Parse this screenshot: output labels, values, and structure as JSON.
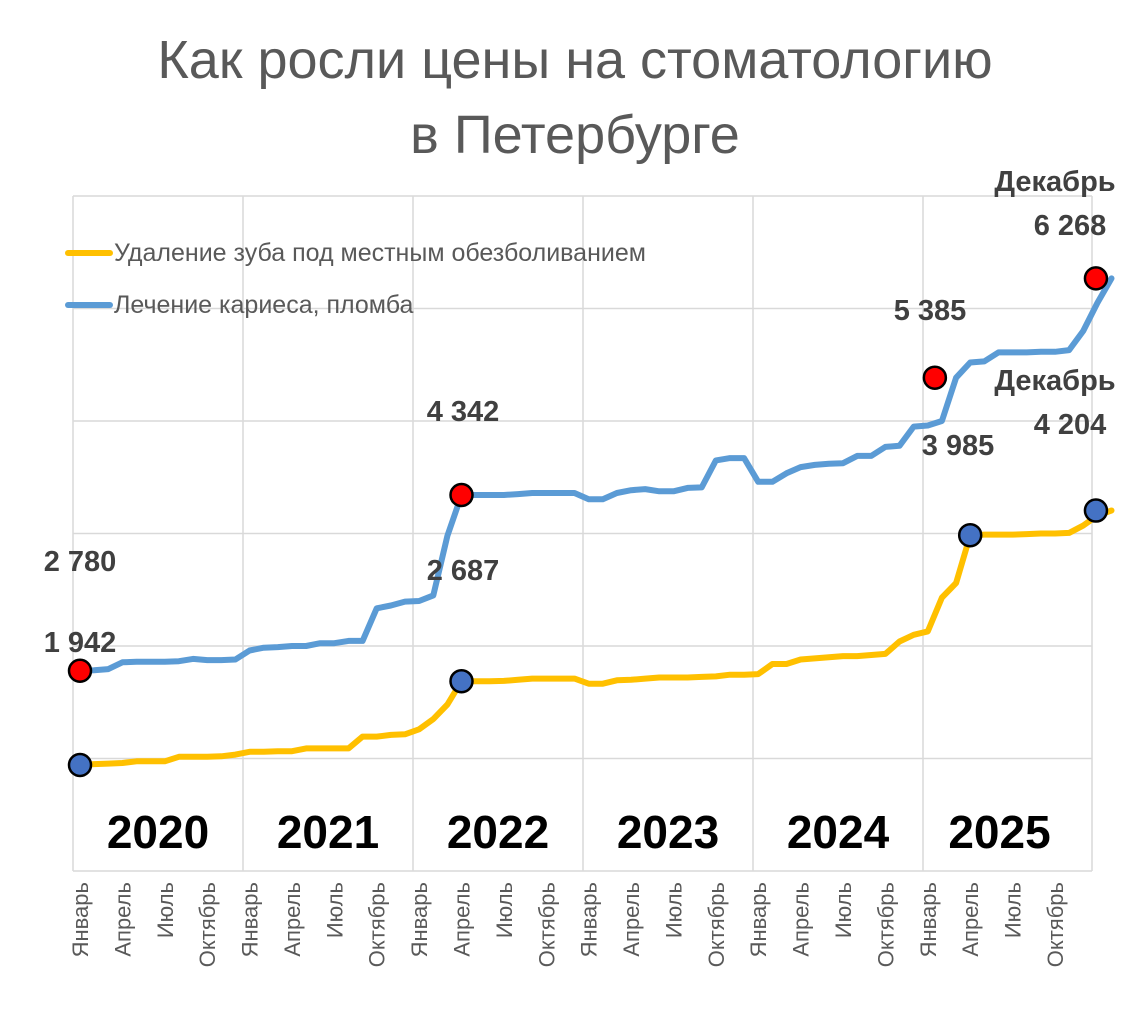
{
  "chart_data": {
    "type": "line",
    "title": [
      "Как росли цены на стоматологию",
      "в Петербурге"
    ],
    "xlabel": "",
    "ylabel": "",
    "ylim": [
      1000,
      7000
    ],
    "grid": true,
    "legend_position": "top-left",
    "x_tick_labels": [
      "Январь",
      "Апрель",
      "Июль",
      "Октябрь",
      "Январь",
      "Апрель",
      "Июль",
      "Октябрь",
      "Январь",
      "Апрель",
      "Июль",
      "Октябрь",
      "Январь",
      "Апрель",
      "Июль",
      "Октябрь",
      "Январь",
      "Апрель",
      "Июль",
      "Октябрь",
      "Январь",
      "Апрель",
      "Июль",
      "Октябрь"
    ],
    "years": [
      "2020",
      "2021",
      "2022",
      "2023",
      "2024",
      "2025"
    ],
    "colors": {
      "tooth": "#FFC000",
      "caries": "#5B9BD5",
      "marker_red": "#FF0000",
      "marker_blue": "#4472C4"
    },
    "series": [
      {
        "name": "Удаление зуба под местным обезболиванием",
        "color": "#FFC000",
        "values": [
          1942,
          1950,
          1955,
          1960,
          1975,
          1975,
          1975,
          2015,
          2015,
          2015,
          2020,
          2035,
          2060,
          2060,
          2065,
          2065,
          2090,
          2090,
          2090,
          2090,
          2195,
          2195,
          2210,
          2215,
          2260,
          2350,
          2480,
          2687,
          2687,
          2687,
          2690,
          2700,
          2710,
          2710,
          2710,
          2710,
          2665,
          2665,
          2695,
          2700,
          2710,
          2720,
          2720,
          2720,
          2725,
          2730,
          2745,
          2745,
          2750,
          2840,
          2840,
          2880,
          2890,
          2900,
          2910,
          2910,
          2920,
          2930,
          3040,
          3100,
          3130,
          3430,
          3560,
          3985,
          3990,
          3990,
          3990,
          3995,
          4000,
          4000,
          4005,
          4070,
          4160,
          4204
        ]
      },
      {
        "name": "Лечение кариеса, пломба",
        "color": "#5B9BD5",
        "values": [
          2780,
          2785,
          2795,
          2855,
          2860,
          2860,
          2860,
          2865,
          2885,
          2875,
          2875,
          2880,
          2960,
          2985,
          2990,
          3000,
          3000,
          3025,
          3025,
          3045,
          3045,
          3335,
          3360,
          3395,
          3400,
          3450,
          3980,
          4342,
          4342,
          4342,
          4342,
          4350,
          4360,
          4360,
          4360,
          4360,
          4305,
          4305,
          4360,
          4385,
          4395,
          4375,
          4375,
          4405,
          4410,
          4650,
          4670,
          4670,
          4460,
          4460,
          4535,
          4590,
          4610,
          4620,
          4625,
          4690,
          4690,
          4770,
          4780,
          4950,
          4960,
          5000,
          5385,
          5520,
          5530,
          5610,
          5610,
          5610,
          5615,
          5615,
          5630,
          5800,
          6050,
          6268
        ]
      }
    ],
    "annotations": {
      "caries_start": "2 780",
      "tooth_start": "1 942",
      "caries_2022": "4 342",
      "tooth_2022": "2 687",
      "caries_2025": "5 385",
      "tooth_2025": "3 985",
      "dec_caries_month": "Декабрь",
      "dec_caries_value": "6 268",
      "dec_tooth_month": "Декабрь",
      "dec_tooth_value": "4 204"
    }
  }
}
